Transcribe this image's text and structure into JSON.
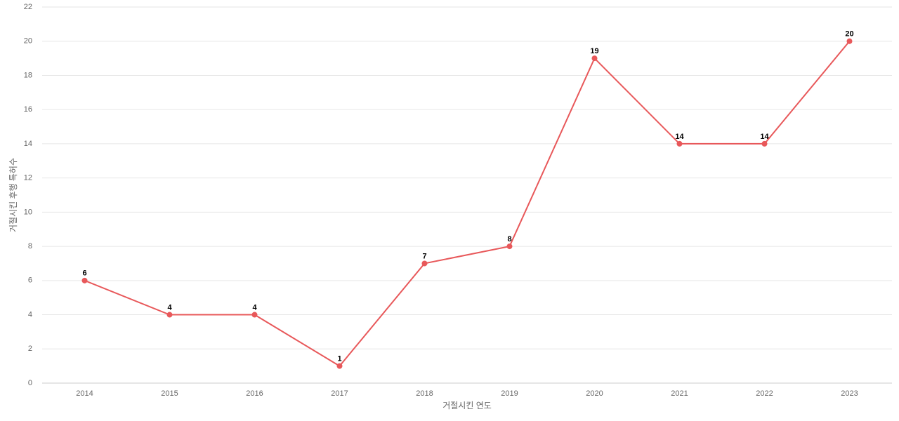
{
  "chart_data": {
    "type": "line",
    "x_label": "거절시킨 연도",
    "y_label": "거절시킨 후행 특허수",
    "categories": [
      "2014",
      "2015",
      "2016",
      "2017",
      "2018",
      "2019",
      "2020",
      "2021",
      "2022",
      "2023"
    ],
    "series": [
      {
        "color": "#e8585a",
        "values": [
          6,
          4,
          4,
          1,
          7,
          8,
          19,
          14,
          14,
          20
        ]
      }
    ],
    "ylim": [
      0,
      22
    ],
    "yticks": [
      0,
      2,
      4,
      6,
      8,
      10,
      12,
      14,
      16,
      18,
      20,
      22
    ],
    "grid": true
  }
}
